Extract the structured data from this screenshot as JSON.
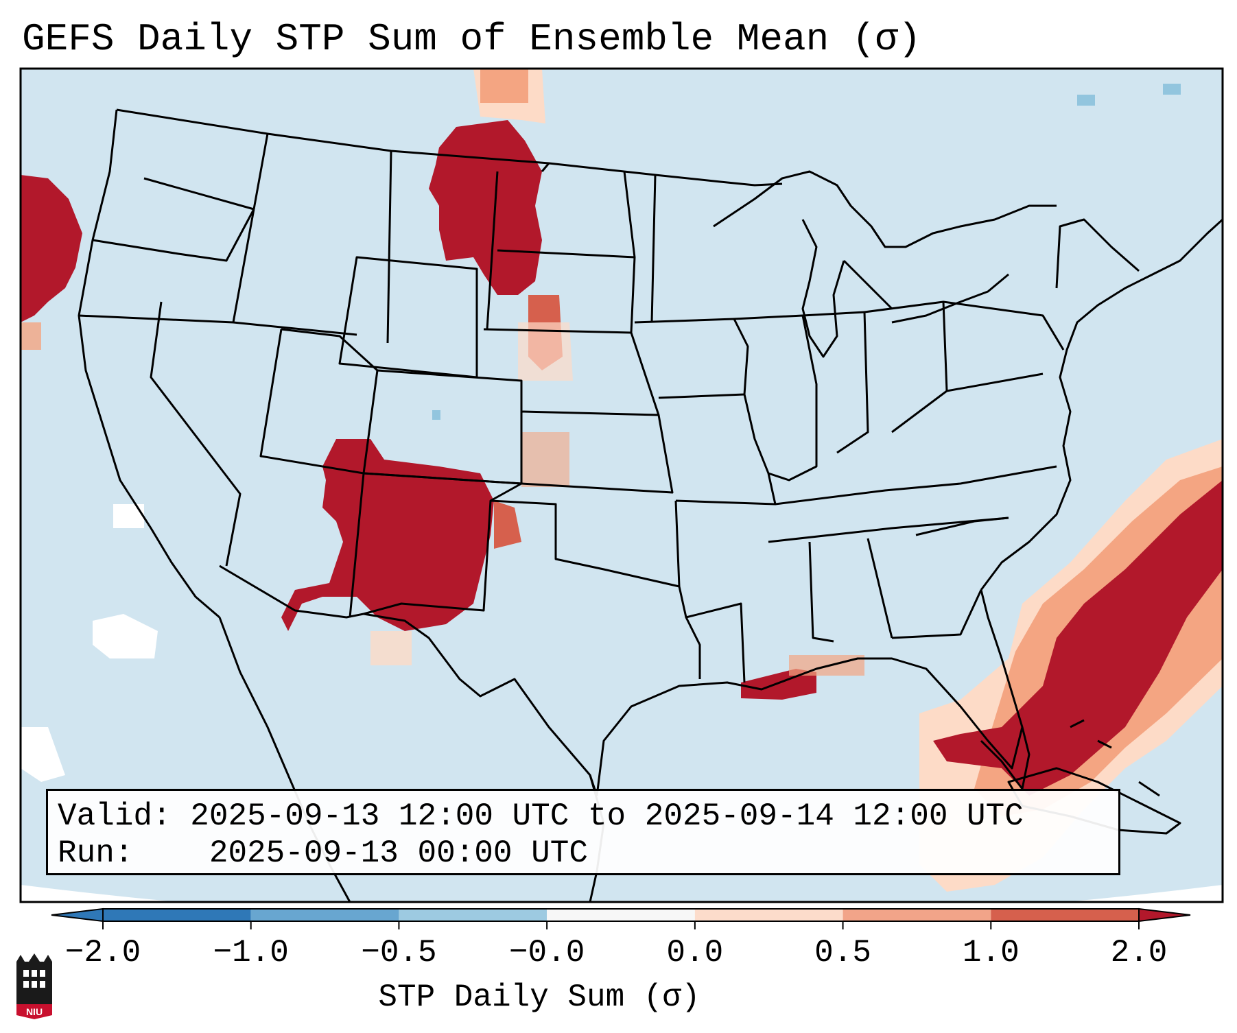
{
  "title": "GEFS Daily STP Sum of Ensemble Mean (σ)",
  "info": {
    "valid_label": "Valid:",
    "valid_value": "2025-09-13 12:00 UTC to 2025-09-14 12:00 UTC",
    "run_label": "Run:",
    "run_value": "2025-09-13 00:00 UTC"
  },
  "colorbar": {
    "label": "STP Daily Sum (σ)",
    "ticks": [
      "−2.0",
      "−1.0",
      "−0.5",
      "−0.0",
      "0.0",
      "0.5",
      "1.0",
      "2.0"
    ],
    "colors": [
      "#2f78b7",
      "#68a6d0",
      "#9dcae1",
      "#dbe9f6",
      "#fcdccb",
      "#f2a489",
      "#d6604d",
      "#b2182b"
    ]
  },
  "colors": {
    "ocean": "#d1e5f0",
    "strong_positive": "#b2182b",
    "positive": "#d6604d",
    "weak_positive": "#f4a582",
    "faint_positive": "#fddbc7",
    "faint_negative": "#92c5de"
  },
  "logo": {
    "name": "niu-logo",
    "text": "NIU"
  }
}
